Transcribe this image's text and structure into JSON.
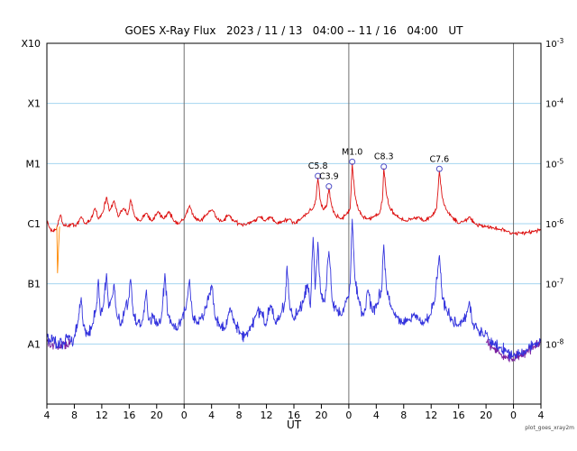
{
  "title": "GOES X-Ray Flux   2023 / 11 / 13   04:00 -- 11 / 16   04:00   UT",
  "watermark": "plot_goes_xray2m",
  "x_axis": {
    "label": "UT",
    "tick_hours": [
      0,
      4,
      8,
      12,
      16,
      20,
      24,
      28,
      32,
      36,
      40,
      44,
      48,
      52,
      56,
      60,
      64,
      68,
      72
    ],
    "tick_labels": [
      "4",
      "8",
      "12",
      "16",
      "20",
      "0",
      "4",
      "8",
      "12",
      "16",
      "20",
      "0",
      "4",
      "8",
      "12",
      "16",
      "20",
      "0",
      "4"
    ]
  },
  "y_axis": {
    "left_labels": [
      "X10",
      "X1",
      "M1",
      "C1",
      "B1",
      "A1"
    ],
    "exponents": [
      -3,
      -4,
      -5,
      -6,
      -7,
      -8
    ],
    "log_range": [
      -9,
      -3
    ]
  },
  "colors": {
    "long_series": "#dd1111",
    "short_series": "#3333dd",
    "secondary_series": "#7a1fa0",
    "glitch_series": "#ff8800",
    "gridline": "#a5d5f0",
    "day_line": "#707070",
    "frame": "#000000",
    "flare_marker": "#5050c8",
    "text": "#000000"
  },
  "chart_data": {
    "type": "line",
    "title": "GOES X-Ray Flux   2023 / 11 / 13   04:00 -- 11 / 16   04:00   UT",
    "xlabel": "UT",
    "x_start": "2023/11/13 04:00 UT",
    "x_end": "2023/11/16 04:00 UT",
    "x_range_hours": [
      0,
      72
    ],
    "y_log": true,
    "ylim": [
      1e-09,
      0.001
    ],
    "grid": "horizontal-decades",
    "day_boundaries_hours": [
      20,
      44,
      68
    ],
    "flare_annotations": [
      {
        "label": "C5.8",
        "hour": 39.5,
        "flux": 5.8e-06
      },
      {
        "label": "C3.9",
        "hour": 41.1,
        "flux": 3.9e-06
      },
      {
        "label": "M1.0",
        "hour": 44.5,
        "flux": 1e-05
      },
      {
        "label": "C8.3",
        "hour": 49.1,
        "flux": 8.3e-06
      },
      {
        "label": "C7.6",
        "hour": 57.2,
        "flux": 7.6e-06
      }
    ],
    "series": [
      {
        "name": "xray-short-secondary-start",
        "color": "#7a1fa0",
        "noise_log10": 0.12,
        "seed": 77,
        "points": [
          [
            0,
            1.2e-08
          ],
          [
            0.6,
            9e-09
          ],
          [
            1.2,
            1.2e-08
          ],
          [
            1.8,
            8.5e-09
          ],
          [
            2.4,
            1.1e-08
          ],
          [
            3,
            9e-09
          ],
          [
            3.5,
            1.1e-08
          ]
        ]
      },
      {
        "name": "xray-short-secondary-end",
        "color": "#7a1fa0",
        "noise_log10": 0.12,
        "seed": 78,
        "points": [
          [
            64,
            1.1e-08
          ],
          [
            65,
            8.5e-09
          ],
          [
            66,
            7e-09
          ],
          [
            67,
            6e-09
          ],
          [
            68,
            5.5e-09
          ],
          [
            69,
            6.5e-09
          ],
          [
            70,
            7.5e-09
          ],
          [
            71,
            9e-09
          ],
          [
            72,
            1.1e-08
          ]
        ]
      },
      {
        "name": "xray-short-0.5-4A",
        "color": "#3333dd",
        "noise_log10": 0.14,
        "seed": 42,
        "points": [
          [
            0,
            1.4e-08
          ],
          [
            0.5,
            1.1e-08
          ],
          [
            1,
            1.3e-08
          ],
          [
            1.5,
            9e-09
          ],
          [
            2,
            1.2e-08
          ],
          [
            2.5,
            1e-08
          ],
          [
            3,
            1.4e-08
          ],
          [
            3.5,
            1.1e-08
          ],
          [
            4,
            1.3e-08
          ],
          [
            4.6,
            2.5e-08
          ],
          [
            5,
            6e-08
          ],
          [
            5.3,
            2e-08
          ],
          [
            6,
            1.4e-08
          ],
          [
            6.6,
            2e-08
          ],
          [
            7.2,
            4e-08
          ],
          [
            7.5,
            1.2e-07
          ],
          [
            7.8,
            3e-08
          ],
          [
            8.3,
            5e-08
          ],
          [
            8.7,
            1.5e-07
          ],
          [
            9,
            4e-08
          ],
          [
            9.5,
            6e-08
          ],
          [
            9.8,
            1e-07
          ],
          [
            10.2,
            3e-08
          ],
          [
            10.8,
            2e-08
          ],
          [
            11.4,
            4e-08
          ],
          [
            12,
            6e-08
          ],
          [
            12.2,
            1.2e-07
          ],
          [
            12.6,
            3e-08
          ],
          [
            13.2,
            2.2e-08
          ],
          [
            14,
            2.5e-08
          ],
          [
            14.5,
            8e-08
          ],
          [
            14.8,
            2.5e-08
          ],
          [
            15.5,
            3e-08
          ],
          [
            16.2,
            2e-08
          ],
          [
            16.8,
            3.5e-08
          ],
          [
            17.2,
            1.5e-07
          ],
          [
            17.6,
            3e-08
          ],
          [
            18.3,
            2e-08
          ],
          [
            19,
            1.7e-08
          ],
          [
            19.6,
            2.5e-08
          ],
          [
            20.3,
            4e-08
          ],
          [
            20.8,
            1.2e-07
          ],
          [
            21.2,
            3e-08
          ],
          [
            21.8,
            2.2e-08
          ],
          [
            22.5,
            2.8e-08
          ],
          [
            23.2,
            4e-08
          ],
          [
            23.7,
            7e-08
          ],
          [
            24.1,
            9e-08
          ],
          [
            24.5,
            2.8e-08
          ],
          [
            25.2,
            2e-08
          ],
          [
            26,
            1.8e-08
          ],
          [
            26.7,
            4e-08
          ],
          [
            27.4,
            2.2e-08
          ],
          [
            28.2,
            1.5e-08
          ],
          [
            29,
            1.4e-08
          ],
          [
            29.8,
            2e-08
          ],
          [
            30.5,
            3e-08
          ],
          [
            31.2,
            3.5e-08
          ],
          [
            31.9,
            2e-08
          ],
          [
            32.6,
            4.5e-08
          ],
          [
            33.3,
            2.2e-08
          ],
          [
            34,
            2.8e-08
          ],
          [
            34.7,
            5e-08
          ],
          [
            35,
            2e-07
          ],
          [
            35.4,
            4e-08
          ],
          [
            36,
            2.5e-08
          ],
          [
            36.7,
            3.5e-08
          ],
          [
            37.4,
            5e-08
          ],
          [
            38,
            1e-07
          ],
          [
            38.4,
            4e-08
          ],
          [
            38.8,
            6e-07
          ],
          [
            39.1,
            8e-08
          ],
          [
            39.5,
            5e-07
          ],
          [
            39.9,
            7e-08
          ],
          [
            40.5,
            5e-08
          ],
          [
            41.1,
            3.5e-07
          ],
          [
            41.6,
            5e-08
          ],
          [
            42.3,
            3.5e-08
          ],
          [
            43,
            3e-08
          ],
          [
            43.8,
            6e-08
          ],
          [
            44.2,
            1e-07
          ],
          [
            44.5,
            1.2e-06
          ],
          [
            44.9,
            1.2e-07
          ],
          [
            45.5,
            5e-08
          ],
          [
            46.2,
            3e-08
          ],
          [
            46.8,
            8e-08
          ],
          [
            47.4,
            3.5e-08
          ],
          [
            48.1,
            4.5e-08
          ],
          [
            48.8,
            8e-08
          ],
          [
            49.1,
            4.5e-07
          ],
          [
            49.5,
            8e-08
          ],
          [
            50.2,
            4e-08
          ],
          [
            51,
            2.8e-08
          ],
          [
            51.8,
            2.2e-08
          ],
          [
            52.6,
            2.5e-08
          ],
          [
            53.4,
            3.2e-08
          ],
          [
            54.2,
            2.5e-08
          ],
          [
            55,
            2.2e-08
          ],
          [
            55.8,
            3e-08
          ],
          [
            56.5,
            5e-08
          ],
          [
            57.2,
            3e-07
          ],
          [
            57.6,
            6e-08
          ],
          [
            58.3,
            3.5e-08
          ],
          [
            59,
            2.5e-08
          ],
          [
            59.8,
            2e-08
          ],
          [
            60.6,
            2.4e-08
          ],
          [
            61.3,
            3.5e-08
          ],
          [
            61.6,
            5e-08
          ],
          [
            62,
            2.2e-08
          ],
          [
            62.8,
            1.7e-08
          ],
          [
            63.6,
            1.4e-08
          ],
          [
            64.4,
            1.2e-08
          ],
          [
            65.2,
            1e-08
          ],
          [
            66,
            8.5e-09
          ],
          [
            67,
            7.5e-09
          ],
          [
            68,
            6.5e-09
          ],
          [
            69,
            7e-09
          ],
          [
            70,
            8e-09
          ],
          [
            71,
            1e-08
          ],
          [
            72,
            1.2e-08
          ]
        ]
      },
      {
        "name": "xray-long-1-8A",
        "color": "#dd1111",
        "noise_log10": 0.045,
        "seed": 7,
        "points": [
          [
            0,
            1.1e-06
          ],
          [
            0.4,
            8.5e-07
          ],
          [
            0.8,
            7.5e-07
          ],
          [
            1.2,
            8e-07
          ],
          [
            1.5,
            9e-07
          ],
          [
            2,
            1.4e-06
          ],
          [
            2.4,
            9.5e-07
          ],
          [
            3,
            9e-07
          ],
          [
            3.6,
            1e-06
          ],
          [
            4.2,
            9e-07
          ],
          [
            5,
            1.3e-06
          ],
          [
            5.6,
            1e-06
          ],
          [
            6.3,
            1.1e-06
          ],
          [
            7,
            1.8e-06
          ],
          [
            7.5,
            1.2e-06
          ],
          [
            8.2,
            1.6e-06
          ],
          [
            8.7,
            2.8e-06
          ],
          [
            9.1,
            1.6e-06
          ],
          [
            9.8,
            2.4e-06
          ],
          [
            10.4,
            1.3e-06
          ],
          [
            11.2,
            1.8e-06
          ],
          [
            11.8,
            1.4e-06
          ],
          [
            12.2,
            2.5e-06
          ],
          [
            12.8,
            1.3e-06
          ],
          [
            13.6,
            1.1e-06
          ],
          [
            14.5,
            1.5e-06
          ],
          [
            15.3,
            1.1e-06
          ],
          [
            16.2,
            1.6e-06
          ],
          [
            17,
            1.2e-06
          ],
          [
            17.8,
            1.6e-06
          ],
          [
            18.5,
            1.1e-06
          ],
          [
            19.3,
            1e-06
          ],
          [
            20,
            1.2e-06
          ],
          [
            20.8,
            2e-06
          ],
          [
            21.4,
            1.3e-06
          ],
          [
            22.3,
            1.1e-06
          ],
          [
            23.2,
            1.4e-06
          ],
          [
            24.1,
            1.7e-06
          ],
          [
            24.8,
            1.2e-06
          ],
          [
            25.6,
            1.1e-06
          ],
          [
            26.5,
            1.4e-06
          ],
          [
            27.3,
            1.1e-06
          ],
          [
            28.2,
            1e-06
          ],
          [
            29,
            9.5e-07
          ],
          [
            30,
            1.1e-06
          ],
          [
            31,
            1.3e-06
          ],
          [
            31.8,
            1.1e-06
          ],
          [
            32.6,
            1.3e-06
          ],
          [
            33.5,
            1e-06
          ],
          [
            34.4,
            1.1e-06
          ],
          [
            35.3,
            1.2e-06
          ],
          [
            36.2,
            1e-06
          ],
          [
            37,
            1.2e-06
          ],
          [
            38,
            1.5e-06
          ],
          [
            38.8,
            1.8e-06
          ],
          [
            39.2,
            2.5e-06
          ],
          [
            39.5,
            5.8e-06
          ],
          [
            39.8,
            2.6e-06
          ],
          [
            40.3,
            1.7e-06
          ],
          [
            40.8,
            2e-06
          ],
          [
            41.1,
            3.9e-06
          ],
          [
            41.5,
            2e-06
          ],
          [
            42,
            1.4e-06
          ],
          [
            42.8,
            1.2e-06
          ],
          [
            43.6,
            1.4e-06
          ],
          [
            44.2,
            1.8e-06
          ],
          [
            44.5,
            1e-05
          ],
          [
            44.9,
            3e-06
          ],
          [
            45.4,
            1.7e-06
          ],
          [
            46,
            1.3e-06
          ],
          [
            46.8,
            1.2e-06
          ],
          [
            47.6,
            1.3e-06
          ],
          [
            48.5,
            1.5e-06
          ],
          [
            48.9,
            2.5e-06
          ],
          [
            49.1,
            8.3e-06
          ],
          [
            49.5,
            3e-06
          ],
          [
            50,
            1.8e-06
          ],
          [
            50.7,
            1.4e-06
          ],
          [
            51.5,
            1.2e-06
          ],
          [
            52.4,
            1.1e-06
          ],
          [
            53.3,
            1.2e-06
          ],
          [
            54.2,
            1.3e-06
          ],
          [
            55,
            1.1e-06
          ],
          [
            56,
            1.3e-06
          ],
          [
            56.8,
            1.8e-06
          ],
          [
            57.2,
            7.6e-06
          ],
          [
            57.6,
            2.8e-06
          ],
          [
            58.2,
            1.7e-06
          ],
          [
            59,
            1.3e-06
          ],
          [
            60,
            1e-06
          ],
          [
            60.8,
            1.1e-06
          ],
          [
            61.6,
            1.3e-06
          ],
          [
            62.4,
            1e-06
          ],
          [
            63.2,
            9.5e-07
          ],
          [
            64,
            9e-07
          ],
          [
            65,
            8.5e-07
          ],
          [
            66,
            8e-07
          ],
          [
            67,
            7.5e-07
          ],
          [
            68,
            7e-07
          ],
          [
            69,
            7e-07
          ],
          [
            70,
            7.2e-07
          ],
          [
            71,
            7.5e-07
          ],
          [
            72,
            8e-07
          ]
        ]
      },
      {
        "name": "xray-long-glitch",
        "color": "#ff8800",
        "noise_log10": 0,
        "seed": 3,
        "points": [
          [
            1.45,
            9e-07
          ],
          [
            1.55,
            1.5e-07
          ],
          [
            1.7,
            4e-07
          ],
          [
            1.85,
            9e-07
          ]
        ]
      }
    ]
  }
}
